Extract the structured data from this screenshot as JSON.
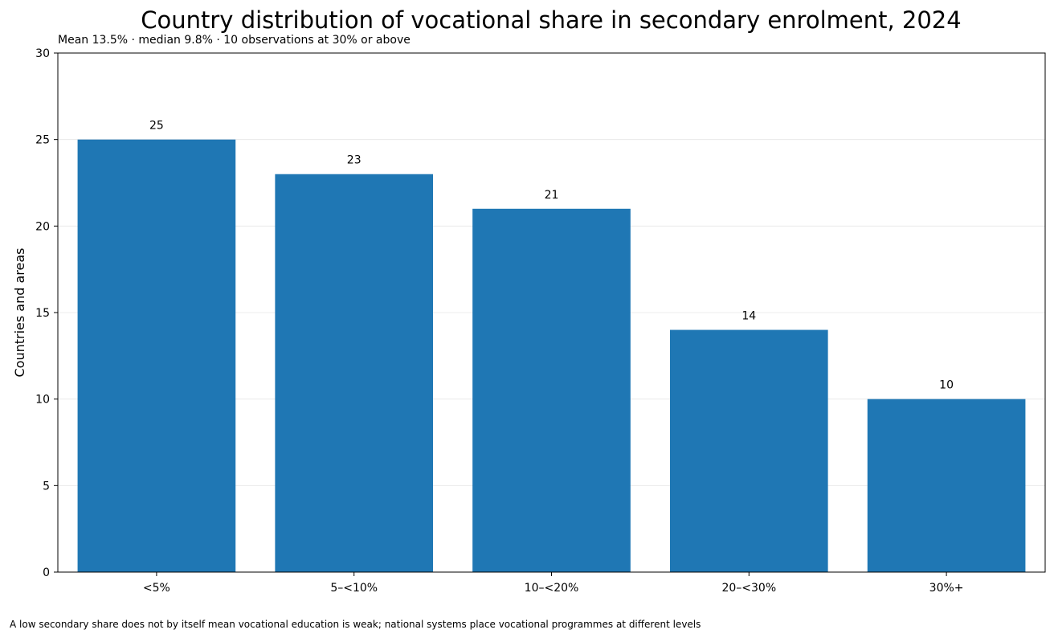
{
  "chart_data": {
    "type": "bar",
    "title": "Country distribution of vocational share in secondary enrolment, 2024",
    "subtitle": "Mean 13.5% · median 9.8% · 10 observations at 30% or above",
    "footnote": "A low secondary share does not by itself mean vocational education is weak; national systems place vocational programmes at different levels",
    "xlabel": "",
    "ylabel": "Countries and areas",
    "categories": [
      "<5%",
      "5–<10%",
      "10–<20%",
      "20–<30%",
      "30%+"
    ],
    "values": [
      25,
      23,
      21,
      14,
      10
    ],
    "data_labels": [
      "25",
      "23",
      "21",
      "14",
      "10"
    ],
    "ylim": [
      0,
      30
    ],
    "yticks": [
      0,
      5,
      10,
      15,
      20,
      25,
      30
    ],
    "grid": "horizontal",
    "bar_color": "#1f77b4"
  }
}
